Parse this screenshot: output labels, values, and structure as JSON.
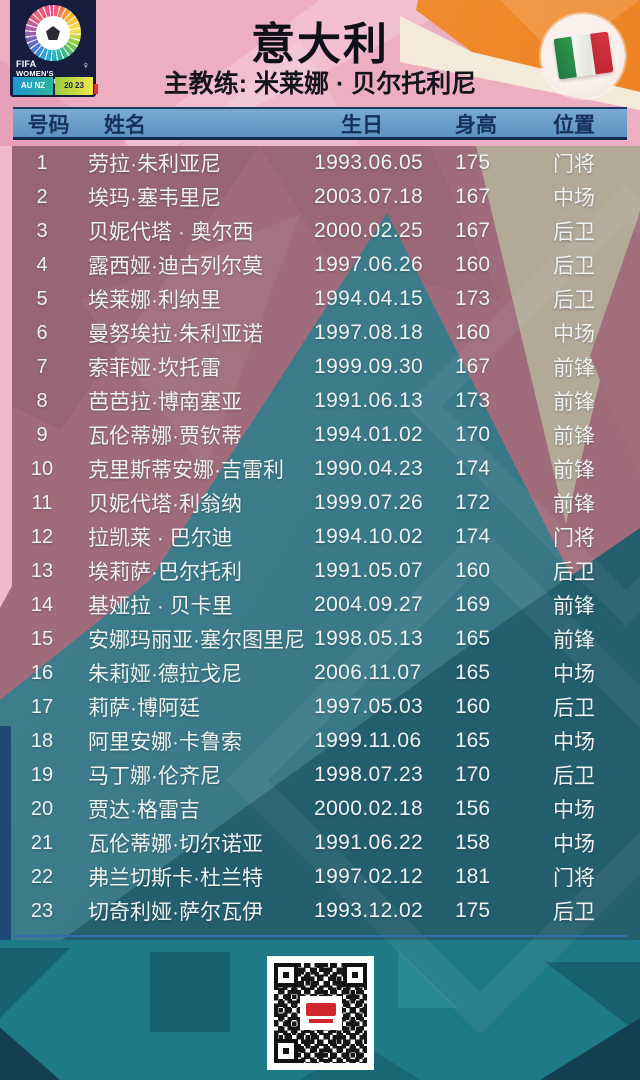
{
  "header": {
    "title": "意大利",
    "coach": "主教练: 米莱娜 · 贝尔托利尼"
  },
  "logo": {
    "fifa": "FIFA",
    "line1": "WOMEN'S",
    "line2": "WORLD CUP",
    "gender": "♀",
    "au": "AU",
    "nz": "NZ",
    "year_top": "20",
    "year_bottom": "23"
  },
  "table": {
    "columns": [
      "号码",
      "姓名",
      "生日",
      "身高",
      "位置"
    ],
    "players": [
      {
        "no": "1",
        "name": "劳拉·朱利亚尼",
        "dob": "1993.06.05",
        "height": "175",
        "pos": "门将"
      },
      {
        "no": "2",
        "name": "埃玛·塞韦里尼",
        "dob": "2003.07.18",
        "height": "167",
        "pos": "中场"
      },
      {
        "no": "3",
        "name": "贝妮代塔 · 奥尔西",
        "dob": "2000.02.25",
        "height": "167",
        "pos": "后卫"
      },
      {
        "no": "4",
        "name": "露西娅·迪古列尔莫",
        "dob": "1997.06.26",
        "height": "160",
        "pos": "后卫"
      },
      {
        "no": "5",
        "name": "埃莱娜·利纳里",
        "dob": "1994.04.15",
        "height": "173",
        "pos": "后卫"
      },
      {
        "no": "6",
        "name": "曼努埃拉·朱利亚诺",
        "dob": "1997.08.18",
        "height": "160",
        "pos": "中场"
      },
      {
        "no": "7",
        "name": "索菲娅·坎托雷",
        "dob": "1999.09.30",
        "height": "167",
        "pos": "前锋"
      },
      {
        "no": "8",
        "name": "芭芭拉·博南塞亚",
        "dob": "1991.06.13",
        "height": "173",
        "pos": "前锋"
      },
      {
        "no": "9",
        "name": "瓦伦蒂娜·贾钦蒂",
        "dob": "1994.01.02",
        "height": "170",
        "pos": "前锋"
      },
      {
        "no": "10",
        "name": "克里斯蒂安娜·吉雷利",
        "dob": "1990.04.23",
        "height": "174",
        "pos": "前锋"
      },
      {
        "no": "11",
        "name": "贝妮代塔·利翁纳",
        "dob": "1999.07.26",
        "height": "172",
        "pos": "前锋"
      },
      {
        "no": "12",
        "name": "拉凯莱 · 巴尔迪",
        "dob": "1994.10.02",
        "height": "174",
        "pos": "门将"
      },
      {
        "no": "13",
        "name": "埃莉萨·巴尔托利",
        "dob": "1991.05.07",
        "height": "160",
        "pos": "后卫"
      },
      {
        "no": "14",
        "name": "基娅拉 · 贝卡里",
        "dob": "2004.09.27",
        "height": "169",
        "pos": "前锋"
      },
      {
        "no": "15",
        "name": "安娜玛丽亚·塞尔图里尼",
        "dob": "1998.05.13",
        "height": "165",
        "pos": "前锋"
      },
      {
        "no": "16",
        "name": "朱莉娅·德拉戈尼",
        "dob": "2006.11.07",
        "height": "165",
        "pos": "中场"
      },
      {
        "no": "17",
        "name": "莉萨·博阿廷",
        "dob": "1997.05.03",
        "height": "160",
        "pos": "后卫"
      },
      {
        "no": "18",
        "name": "阿里安娜·卡鲁索",
        "dob": "1999.11.06",
        "height": "165",
        "pos": "中场"
      },
      {
        "no": "19",
        "name": "马丁娜·伦齐尼",
        "dob": "1998.07.23",
        "height": "170",
        "pos": "后卫"
      },
      {
        "no": "20",
        "name": "贾达·格雷吉",
        "dob": "2000.02.18",
        "height": "156",
        "pos": "中场"
      },
      {
        "no": "21",
        "name": "瓦伦蒂娜·切尔诺亚",
        "dob": "1991.06.22",
        "height": "158",
        "pos": "中场"
      },
      {
        "no": "22",
        "name": "弗兰切斯卡·杜兰特",
        "dob": "1997.02.12",
        "height": "181",
        "pos": "门将"
      },
      {
        "no": "23",
        "name": "切奇利娅·萨尔瓦伊",
        "dob": "1993.12.02",
        "height": "175",
        "pos": "后卫"
      }
    ]
  },
  "colors": {
    "header_pink": "#edaec2",
    "orange": "#ec8122",
    "cream": "#f3ead9",
    "band_blue": "#6a9fcb",
    "navy": "#122a4e",
    "mauve": "#a06c7b",
    "taupe": "#b3a997",
    "teal": "#3a7a88",
    "teal_dark": "#245f6e",
    "footer_teal": "#1f7a87",
    "qr_red": "#d1262c",
    "flag_green": "#2e9a4f",
    "flag_red": "#c02733"
  }
}
